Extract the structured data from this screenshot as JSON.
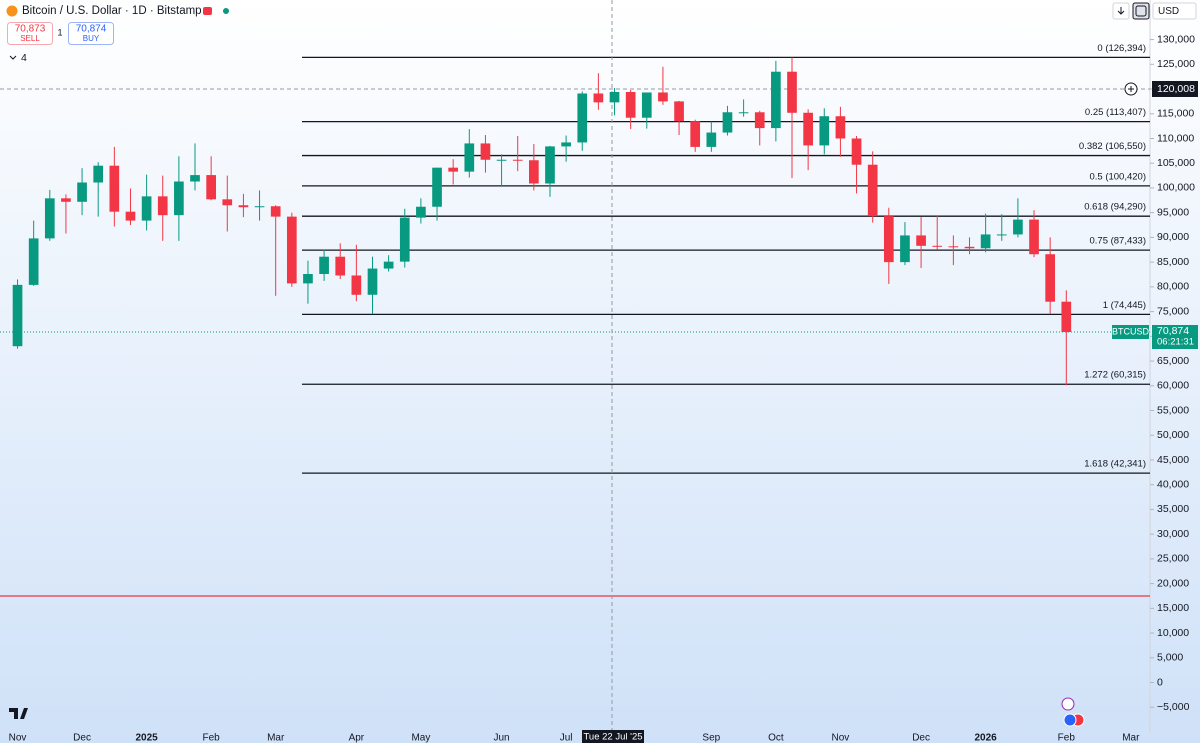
{
  "header": {
    "sell": {
      "price": "70,873",
      "label": "SELL"
    },
    "spread": "1",
    "buy": {
      "price": "70,874",
      "label": "BUY"
    },
    "indicators": "4",
    "currency": "USD"
  },
  "chart_data": {
    "type": "candlestick",
    "title": "Bitcoin / U.S. Dollar · 1D · Bitstamp",
    "categories": [
      "Nov",
      null,
      null,
      null,
      "Dec",
      null,
      null,
      null,
      "2025",
      null,
      null,
      null,
      "Feb",
      null,
      null,
      null,
      "Mar",
      null,
      null,
      null,
      null,
      "Apr",
      null,
      null,
      null,
      "May",
      null,
      null,
      null,
      null,
      "Jun",
      null,
      null,
      null,
      "Jul",
      null,
      null,
      null,
      null,
      null,
      null,
      null,
      null,
      "Sep",
      null,
      null,
      null,
      "Oct",
      null,
      null,
      null,
      "Nov",
      null,
      null,
      null,
      null,
      "Dec",
      null,
      null,
      null,
      "2026",
      null,
      null,
      null,
      null,
      "Feb",
      null,
      null,
      null,
      "Mar"
    ],
    "open": [
      68000,
      80400,
      89800,
      97900,
      97200,
      101100,
      104500,
      95200,
      93400,
      98300,
      94500,
      101300,
      102600,
      97700,
      96500,
      96100,
      96300,
      94200,
      80700,
      82600,
      86100,
      82300,
      78400,
      83700,
      85100,
      94000,
      96200,
      104100,
      103300,
      109000,
      105700,
      105700,
      105600,
      100900,
      108400,
      109200,
      119100,
      117300,
      119400,
      114200,
      119300,
      117500,
      113500,
      108300,
      111200,
      115300,
      115300,
      112100,
      123500,
      115200,
      108600,
      114500,
      110000,
      104700,
      94300,
      85000,
      90400,
      88300,
      88200,
      88100,
      87800,
      90600,
      90600,
      93600,
      86600,
      77000,
      null,
      null,
      null,
      null
    ],
    "high": [
      81500,
      93400,
      99600,
      98700,
      104000,
      105200,
      108300,
      99900,
      102700,
      102500,
      106400,
      109000,
      106400,
      102500,
      98800,
      99500,
      96500,
      95000,
      85300,
      87500,
      88800,
      88500,
      86100,
      86400,
      95800,
      97900,
      104100,
      105800,
      111900,
      110700,
      106800,
      110500,
      108900,
      108500,
      110600,
      119500,
      123200,
      120200,
      119800,
      119300,
      124500,
      117600,
      113800,
      113400,
      116600,
      117900,
      115600,
      125700,
      126400,
      115900,
      116100,
      116400,
      110500,
      107400,
      96000,
      93100,
      94100,
      94500,
      90400,
      90000,
      94800,
      94700,
      97900,
      95500,
      90000,
      79300,
      null,
      null,
      null,
      null
    ],
    "low": [
      67500,
      80200,
      89300,
      90800,
      94500,
      94200,
      92200,
      92500,
      91400,
      89300,
      89300,
      99500,
      97500,
      91200,
      94100,
      93400,
      78200,
      80000,
      76600,
      81200,
      81600,
      77100,
      74500,
      83100,
      83900,
      92800,
      93400,
      100700,
      102100,
      103100,
      100400,
      103400,
      99500,
      98200,
      105300,
      107500,
      115800,
      114700,
      111900,
      112000,
      116800,
      110700,
      107300,
      107300,
      110600,
      114400,
      108600,
      109400,
      102000,
      103600,
      106800,
      106300,
      98900,
      93000,
      80600,
      84400,
      83800,
      87600,
      84400,
      86600,
      87000,
      89300,
      90000,
      86000,
      74600,
      60100,
      null,
      null,
      null,
      null
    ],
    "close": [
      80400,
      89800,
      97900,
      97200,
      101100,
      104500,
      95200,
      93400,
      98300,
      94500,
      101300,
      102600,
      97700,
      96500,
      96100,
      96300,
      94200,
      80700,
      82600,
      86100,
      82300,
      78400,
      83700,
      85100,
      94000,
      96200,
      104100,
      103300,
      109000,
      105700,
      105700,
      105600,
      100900,
      108400,
      109200,
      119100,
      117300,
      119400,
      114200,
      119300,
      117500,
      113500,
      108300,
      111200,
      115300,
      115300,
      112100,
      123500,
      115200,
      108600,
      114500,
      110000,
      104700,
      94300,
      85000,
      90400,
      88300,
      88200,
      88100,
      87800,
      90600,
      90600,
      93600,
      86600,
      77000,
      70874,
      null,
      null,
      null,
      null
    ],
    "up_color": "#089981",
    "down_color": "#f23645",
    "ylim": [
      -10000,
      138000
    ],
    "yticks": [
      {
        "value": 130000,
        "label": "130,000"
      },
      {
        "value": 125000,
        "label": "125,000"
      },
      {
        "value": 120000,
        "label": "120,000"
      },
      {
        "value": 115000,
        "label": "115,000"
      },
      {
        "value": 110000,
        "label": "110,000"
      },
      {
        "value": 105000,
        "label": "105,000"
      },
      {
        "value": 100000,
        "label": "100,000"
      },
      {
        "value": 95000,
        "label": "95,000"
      },
      {
        "value": 90000,
        "label": "90,000"
      },
      {
        "value": 85000,
        "label": "85,000"
      },
      {
        "value": 80000,
        "label": "80,000"
      },
      {
        "value": 75000,
        "label": "75,000"
      },
      {
        "value": 70000,
        "label": "70,000"
      },
      {
        "value": 65000,
        "label": "65,000"
      },
      {
        "value": 60000,
        "label": "60,000"
      },
      {
        "value": 55000,
        "label": "55,000"
      },
      {
        "value": 50000,
        "label": "50,000"
      },
      {
        "value": 45000,
        "label": "45,000"
      },
      {
        "value": 40000,
        "label": "40,000"
      },
      {
        "value": 35000,
        "label": "35,000"
      },
      {
        "value": 30000,
        "label": "30,000"
      },
      {
        "value": 25000,
        "label": "25,000"
      },
      {
        "value": 20000,
        "label": "20,000"
      },
      {
        "value": 15000,
        "label": "15,000"
      },
      {
        "value": 10000,
        "label": "10,000"
      },
      {
        "value": 5000,
        "label": "5,000"
      },
      0,
      {
        "value": -5000,
        "label": "−5,000"
      }
    ],
    "fib_levels": [
      {
        "value": 126394,
        "label": "0 (126,394)"
      },
      {
        "value": 113407,
        "label": "0.25 (113,407)"
      },
      {
        "value": 106550,
        "label": "0.382 (106,550)"
      },
      {
        "value": 100420,
        "label": "0.5 (100,420)"
      },
      {
        "value": 94290,
        "label": "0.618 (94,290)"
      },
      {
        "value": 87433,
        "label": "0.75 (87,433)"
      },
      {
        "value": 74445,
        "label": "1 (74,445)"
      },
      {
        "value": 60315,
        "label": "1.272 (60,315)"
      },
      {
        "value": 42341,
        "label": "1.618 (42,341)"
      }
    ],
    "fib_color": "#131722",
    "hline": {
      "value": 17500,
      "color": "#f23645"
    },
    "crosshair": {
      "price": {
        "value": 120008,
        "label": "120,008"
      },
      "date": "Tue 22 Jul '25"
    },
    "last_price": {
      "symbol": "BTCUSD",
      "value": 70874,
      "label": "70,874",
      "countdown": "06:21:31",
      "color": "#089981"
    }
  }
}
